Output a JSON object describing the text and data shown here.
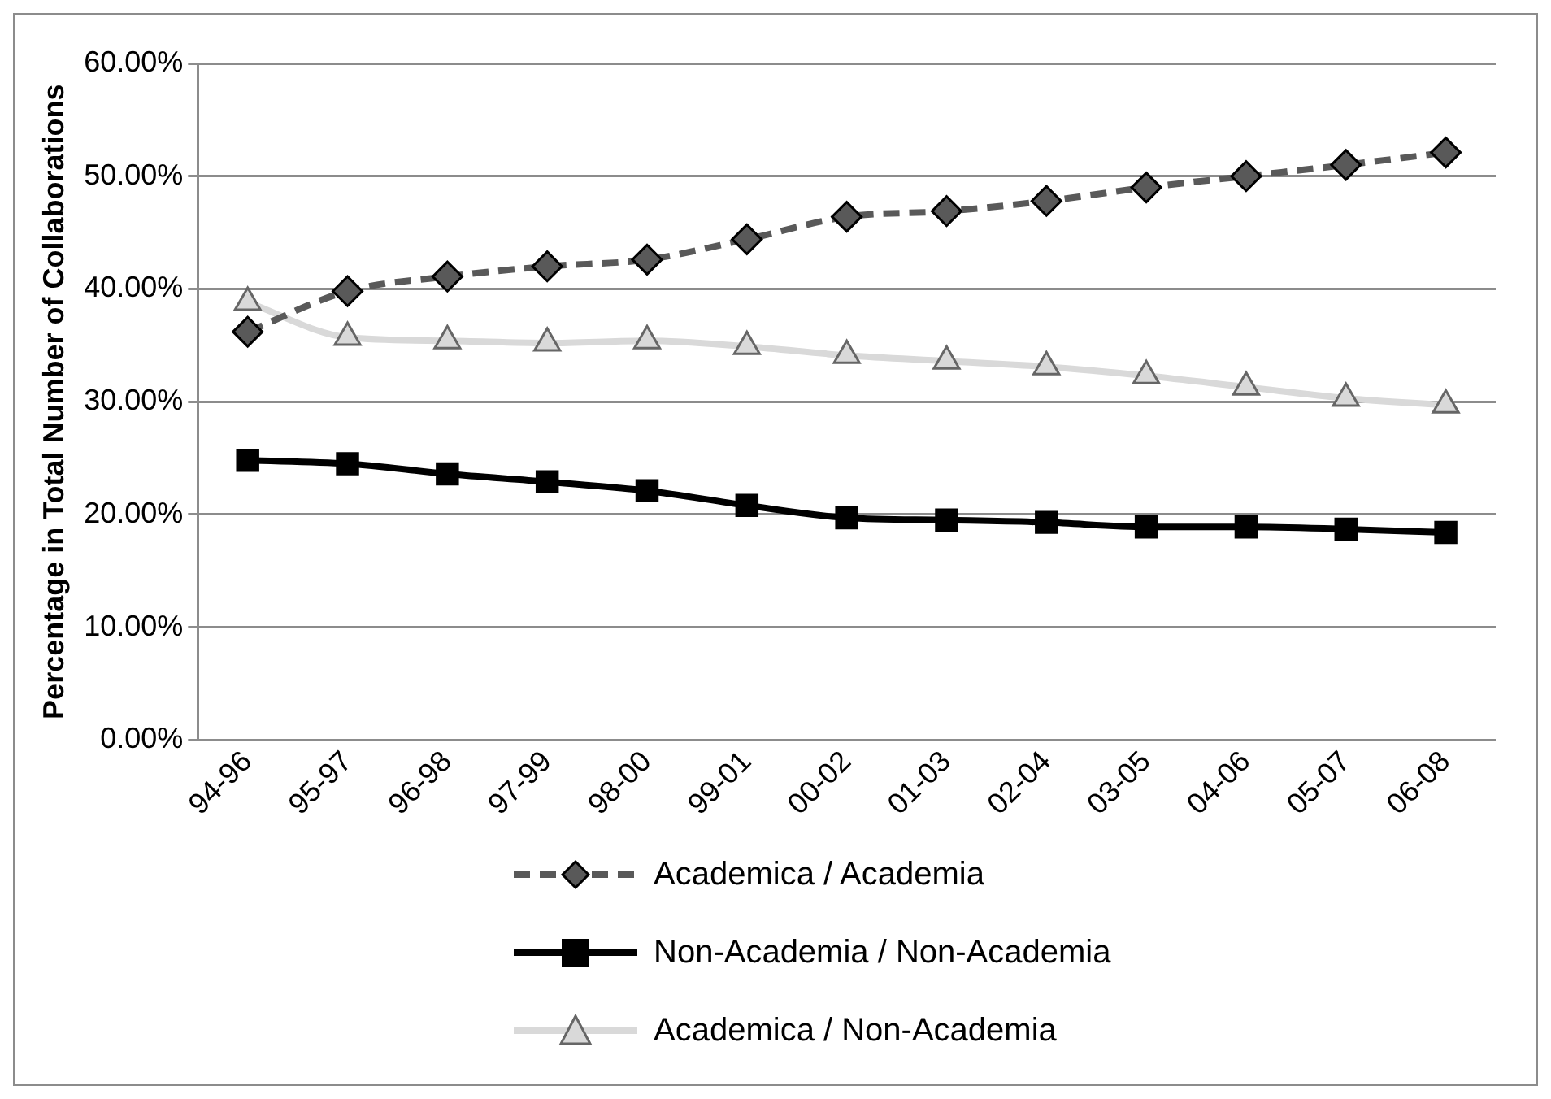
{
  "chart_data": {
    "type": "line",
    "ylabel": "Percentage in Total Number of Collaborations",
    "categories": [
      "94-96",
      "95-97",
      "96-98",
      "97-99",
      "98-00",
      "99-01",
      "00-02",
      "01-03",
      "02-04",
      "03-05",
      "04-06",
      "05-07",
      "06-08"
    ],
    "series": [
      {
        "name": "Academica / Academia",
        "color": "#595959",
        "marker": "diamond",
        "line_style": "dashed",
        "values": [
          36.2,
          39.8,
          41.1,
          42.0,
          42.6,
          44.4,
          46.4,
          46.9,
          47.8,
          49.0,
          50.0,
          51.0,
          52.1
        ]
      },
      {
        "name": "Non-Academia / Non-Academia",
        "color": "#000000",
        "marker": "square",
        "line_style": "solid",
        "values": [
          24.8,
          24.5,
          23.6,
          22.9,
          22.1,
          20.8,
          19.7,
          19.5,
          19.3,
          18.9,
          18.9,
          18.7,
          18.4
        ]
      },
      {
        "name": "Academica / Non-Academia",
        "color": "#d9d9d9",
        "marker": "triangle",
        "line_style": "solid",
        "values": [
          38.8,
          35.7,
          35.4,
          35.2,
          35.4,
          34.9,
          34.1,
          33.6,
          33.1,
          32.3,
          31.3,
          30.3,
          29.7
        ]
      }
    ],
    "ylim": [
      0,
      60
    ],
    "yticks": [
      {
        "value": 0,
        "label": "0.00%"
      },
      {
        "value": 10,
        "label": "10.00%"
      },
      {
        "value": 20,
        "label": "20.00%"
      },
      {
        "value": 30,
        "label": "30.00%"
      },
      {
        "value": 40,
        "label": "40.00%"
      },
      {
        "value": 50,
        "label": "50.00%"
      },
      {
        "value": 60,
        "label": "60.00%"
      }
    ],
    "grid": "y",
    "legend": "bottom"
  }
}
